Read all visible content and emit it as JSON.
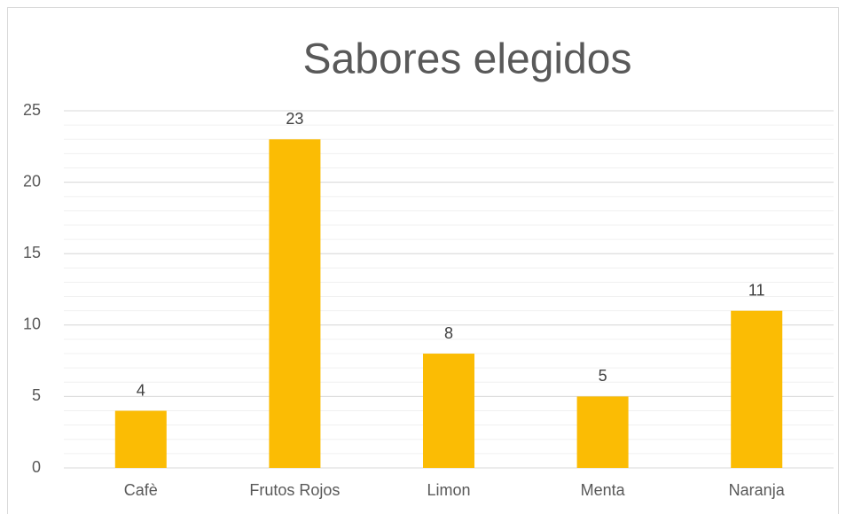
{
  "chart_data": {
    "type": "bar",
    "title": "Sabores elegidos",
    "categories": [
      "Cafè",
      "Frutos Rojos",
      "Limon",
      "Menta",
      "Naranja"
    ],
    "values": [
      4,
      23,
      8,
      5,
      11
    ],
    "color": "#fbbc04",
    "ylim": [
      0,
      25
    ],
    "yticks": [
      0,
      5,
      10,
      15,
      20,
      25
    ],
    "grid": true,
    "minor_grid_step": 1,
    "data_labels": true
  }
}
